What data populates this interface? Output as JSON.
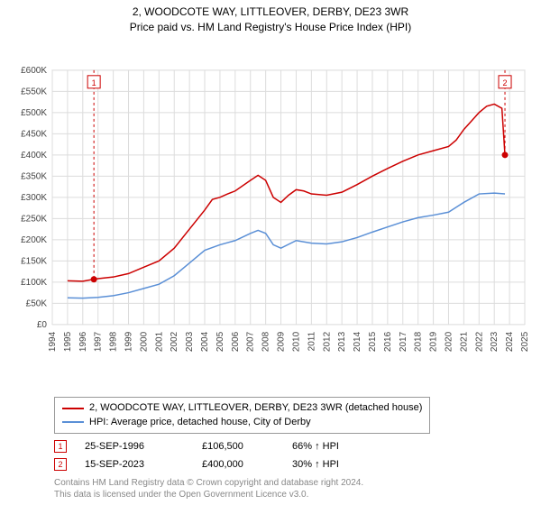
{
  "title": {
    "main": "2, WOODCOTE WAY, LITTLEOVER, DERBY, DE23 3WR",
    "sub": "Price paid vs. HM Land Registry's House Price Index (HPI)"
  },
  "chart": {
    "type": "line",
    "background_color": "#ffffff",
    "grid_color": "#dcdcdc",
    "axis_color": "#666666",
    "tick_font_size": 10,
    "x": {
      "min": 1994,
      "max": 2025,
      "ticks": [
        1994,
        1995,
        1996,
        1997,
        1998,
        1999,
        2000,
        2001,
        2002,
        2003,
        2004,
        2005,
        2006,
        2007,
        2008,
        2009,
        2010,
        2011,
        2012,
        2013,
        2014,
        2015,
        2016,
        2017,
        2018,
        2019,
        2020,
        2021,
        2022,
        2023,
        2024,
        2025
      ]
    },
    "y": {
      "min": 0,
      "max": 600000,
      "tick_step": 50000,
      "tick_labels": [
        "£0",
        "£50K",
        "£100K",
        "£150K",
        "£200K",
        "£250K",
        "£300K",
        "£350K",
        "£400K",
        "£450K",
        "£500K",
        "£550K",
        "£600K"
      ]
    },
    "series": [
      {
        "name": "property",
        "label": "2, WOODCOTE WAY, LITTLEOVER, DERBY, DE23 3WR (detached house)",
        "color": "#cc0000",
        "width": 1.5,
        "data": [
          [
            1995.0,
            103000
          ],
          [
            1996.0,
            102000
          ],
          [
            1996.7,
            106500
          ],
          [
            1997.0,
            108000
          ],
          [
            1998.0,
            112000
          ],
          [
            1999.0,
            120000
          ],
          [
            2000.0,
            135000
          ],
          [
            2001.0,
            150000
          ],
          [
            2002.0,
            180000
          ],
          [
            2003.0,
            225000
          ],
          [
            2004.0,
            270000
          ],
          [
            2004.5,
            295000
          ],
          [
            2005.0,
            300000
          ],
          [
            2005.5,
            308000
          ],
          [
            2006.0,
            315000
          ],
          [
            2007.0,
            340000
          ],
          [
            2007.5,
            352000
          ],
          [
            2008.0,
            340000
          ],
          [
            2008.5,
            300000
          ],
          [
            2009.0,
            288000
          ],
          [
            2009.5,
            305000
          ],
          [
            2010.0,
            318000
          ],
          [
            2010.5,
            315000
          ],
          [
            2011.0,
            308000
          ],
          [
            2012.0,
            305000
          ],
          [
            2013.0,
            312000
          ],
          [
            2014.0,
            330000
          ],
          [
            2015.0,
            350000
          ],
          [
            2016.0,
            368000
          ],
          [
            2017.0,
            385000
          ],
          [
            2018.0,
            400000
          ],
          [
            2019.0,
            410000
          ],
          [
            2020.0,
            420000
          ],
          [
            2020.5,
            435000
          ],
          [
            2021.0,
            460000
          ],
          [
            2021.5,
            480000
          ],
          [
            2022.0,
            500000
          ],
          [
            2022.5,
            515000
          ],
          [
            2023.0,
            520000
          ],
          [
            2023.5,
            510000
          ],
          [
            2023.7,
            400000
          ]
        ]
      },
      {
        "name": "hpi",
        "label": "HPI: Average price, detached house, City of Derby",
        "color": "#5a8fd6",
        "width": 1.5,
        "data": [
          [
            1995.0,
            63000
          ],
          [
            1996.0,
            62000
          ],
          [
            1997.0,
            64000
          ],
          [
            1998.0,
            68000
          ],
          [
            1999.0,
            75000
          ],
          [
            2000.0,
            85000
          ],
          [
            2001.0,
            95000
          ],
          [
            2002.0,
            115000
          ],
          [
            2003.0,
            145000
          ],
          [
            2004.0,
            175000
          ],
          [
            2005.0,
            188000
          ],
          [
            2006.0,
            198000
          ],
          [
            2007.0,
            215000
          ],
          [
            2007.5,
            222000
          ],
          [
            2008.0,
            215000
          ],
          [
            2008.5,
            188000
          ],
          [
            2009.0,
            180000
          ],
          [
            2010.0,
            198000
          ],
          [
            2011.0,
            192000
          ],
          [
            2012.0,
            190000
          ],
          [
            2013.0,
            195000
          ],
          [
            2014.0,
            205000
          ],
          [
            2015.0,
            218000
          ],
          [
            2016.0,
            230000
          ],
          [
            2017.0,
            242000
          ],
          [
            2018.0,
            252000
          ],
          [
            2019.0,
            258000
          ],
          [
            2020.0,
            265000
          ],
          [
            2021.0,
            288000
          ],
          [
            2022.0,
            308000
          ],
          [
            2023.0,
            310000
          ],
          [
            2023.7,
            308000
          ]
        ]
      }
    ],
    "markers": [
      {
        "n": "1",
        "x": 1996.73,
        "y": 106500,
        "color": "#cc0000"
      },
      {
        "n": "2",
        "x": 2023.7,
        "y": 400000,
        "color": "#cc0000"
      }
    ]
  },
  "legend": {
    "rows": [
      {
        "color": "#cc0000",
        "label": "2, WOODCOTE WAY, LITTLEOVER, DERBY, DE23 3WR (detached house)"
      },
      {
        "color": "#5a8fd6",
        "label": "HPI: Average price, detached house, City of Derby"
      }
    ]
  },
  "transactions": [
    {
      "n": "1",
      "color": "#cc0000",
      "date": "25-SEP-1996",
      "price": "£106,500",
      "delta": "66% ↑ HPI"
    },
    {
      "n": "2",
      "color": "#cc0000",
      "date": "15-SEP-2023",
      "price": "£400,000",
      "delta": "30% ↑ HPI"
    }
  ],
  "footer": {
    "line1": "Contains HM Land Registry data © Crown copyright and database right 2024.",
    "line2": "This data is licensed under the Open Government Licence v3.0."
  }
}
